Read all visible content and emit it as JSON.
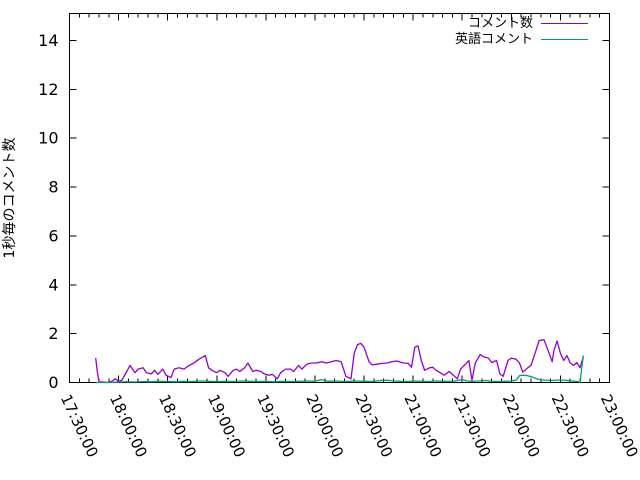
{
  "chart_data": {
    "type": "line",
    "title": "",
    "xlabel": "",
    "ylabel": "1秒毎のコメント数",
    "grid": false,
    "legend_position": "top-right-inside",
    "axis_color": "#000000",
    "text_color": "#000000",
    "background_color": "#ffffff",
    "ylim": [
      0,
      15.1
    ],
    "yticks": [
      0,
      2,
      4,
      6,
      8,
      10,
      12,
      14
    ],
    "x_unit": "minutes after 17:30:00",
    "xlim": [
      0,
      330
    ],
    "xtick_interval_minutes": 30,
    "x_minor_tick_minutes": 6,
    "xticks": [
      {
        "t": 0,
        "label": "17:30:00"
      },
      {
        "t": 30,
        "label": "18:00:00"
      },
      {
        "t": 60,
        "label": "18:30:00"
      },
      {
        "t": 90,
        "label": "19:00:00"
      },
      {
        "t": 120,
        "label": "19:30:00"
      },
      {
        "t": 150,
        "label": "20:00:00"
      },
      {
        "t": 180,
        "label": "20:30:00"
      },
      {
        "t": 210,
        "label": "21:00:00"
      },
      {
        "t": 240,
        "label": "21:30:00"
      },
      {
        "t": 270,
        "label": "22:00:00"
      },
      {
        "t": 300,
        "label": "22:30:00"
      },
      {
        "t": 330,
        "label": "23:00:00"
      }
    ],
    "series": [
      {
        "id": "comments",
        "name": "コメント数",
        "color": "#9400d3",
        "points": [
          [
            16,
            1.0
          ],
          [
            17,
            0.45
          ],
          [
            18,
            0.03
          ],
          [
            21,
            0.02
          ],
          [
            23,
            0
          ],
          [
            26,
            0.05
          ],
          [
            28,
            0.15
          ],
          [
            30,
            0.04
          ],
          [
            32,
            0.1
          ],
          [
            35,
            0.45
          ],
          [
            37,
            0.7
          ],
          [
            40,
            0.4
          ],
          [
            42,
            0.55
          ],
          [
            45,
            0.6
          ],
          [
            47,
            0.4
          ],
          [
            50,
            0.35
          ],
          [
            52,
            0.5
          ],
          [
            54,
            0.33
          ],
          [
            57,
            0.55
          ],
          [
            59,
            0.3
          ],
          [
            62,
            0.2
          ],
          [
            64,
            0.55
          ],
          [
            67,
            0.6
          ],
          [
            70,
            0.55
          ],
          [
            73,
            0.7
          ],
          [
            76,
            0.8
          ],
          [
            79,
            0.95
          ],
          [
            83,
            1.1
          ],
          [
            85,
            0.6
          ],
          [
            87,
            0.5
          ],
          [
            90,
            0.4
          ],
          [
            92,
            0.5
          ],
          [
            95,
            0.4
          ],
          [
            97,
            0.25
          ],
          [
            100,
            0.5
          ],
          [
            102,
            0.55
          ],
          [
            104,
            0.45
          ],
          [
            107,
            0.6
          ],
          [
            109,
            0.8
          ],
          [
            112,
            0.45
          ],
          [
            114,
            0.5
          ],
          [
            117,
            0.45
          ],
          [
            119,
            0.35
          ],
          [
            122,
            0.3
          ],
          [
            124,
            0.33
          ],
          [
            127,
            0.15
          ],
          [
            129,
            0.4
          ],
          [
            132,
            0.55
          ],
          [
            135,
            0.55
          ],
          [
            137,
            0.45
          ],
          [
            140,
            0.7
          ],
          [
            142,
            0.55
          ],
          [
            145,
            0.75
          ],
          [
            148,
            0.8
          ],
          [
            151,
            0.8
          ],
          [
            154,
            0.85
          ],
          [
            157,
            0.8
          ],
          [
            160,
            0.85
          ],
          [
            163,
            0.9
          ],
          [
            166,
            0.85
          ],
          [
            169,
            0.25
          ],
          [
            172,
            0.15
          ],
          [
            174,
            1.2
          ],
          [
            176,
            1.55
          ],
          [
            178,
            1.6
          ],
          [
            180,
            1.45
          ],
          [
            183,
            0.85
          ],
          [
            185,
            0.72
          ],
          [
            188,
            0.75
          ],
          [
            191,
            0.78
          ],
          [
            194,
            0.8
          ],
          [
            197,
            0.85
          ],
          [
            200,
            0.88
          ],
          [
            204,
            0.8
          ],
          [
            207,
            0.78
          ],
          [
            209,
            0.62
          ],
          [
            211,
            1.45
          ],
          [
            213,
            1.5
          ],
          [
            215,
            0.9
          ],
          [
            217,
            0.5
          ],
          [
            220,
            0.6
          ],
          [
            222,
            0.62
          ],
          [
            224,
            0.5
          ],
          [
            227,
            0.38
          ],
          [
            229,
            0.3
          ],
          [
            232,
            0.45
          ],
          [
            234,
            0.33
          ],
          [
            237,
            0.15
          ],
          [
            239,
            0.55
          ],
          [
            242,
            0.75
          ],
          [
            244,
            0.9
          ],
          [
            246,
            0.1
          ],
          [
            248,
            0.8
          ],
          [
            251,
            1.15
          ],
          [
            253,
            1.05
          ],
          [
            256,
            1.0
          ],
          [
            258,
            0.82
          ],
          [
            261,
            0.9
          ],
          [
            263,
            0.35
          ],
          [
            265,
            0.25
          ],
          [
            268,
            0.9
          ],
          [
            270,
            1.0
          ],
          [
            273,
            0.95
          ],
          [
            275,
            0.8
          ],
          [
            277,
            0.42
          ],
          [
            280,
            0.6
          ],
          [
            282,
            0.7
          ],
          [
            285,
            1.3
          ],
          [
            287,
            1.72
          ],
          [
            290,
            1.75
          ],
          [
            292,
            1.4
          ],
          [
            295,
            0.85
          ],
          [
            296,
            1.3
          ],
          [
            298,
            1.7
          ],
          [
            300,
            1.2
          ],
          [
            302,
            0.9
          ],
          [
            304,
            1.1
          ],
          [
            306,
            0.8
          ],
          [
            308,
            0.7
          ],
          [
            310,
            0.82
          ],
          [
            312,
            0.6
          ],
          [
            314,
            1.05
          ]
        ]
      },
      {
        "id": "english-comments",
        "name": "英語コメント",
        "color": "#009e73",
        "points": [
          [
            16,
            0
          ],
          [
            20,
            0
          ],
          [
            25,
            0
          ],
          [
            30,
            0.02
          ],
          [
            35,
            0.03
          ],
          [
            40,
            0.02
          ],
          [
            45,
            0.04
          ],
          [
            50,
            0.03
          ],
          [
            55,
            0.05
          ],
          [
            60,
            0.04
          ],
          [
            65,
            0.03
          ],
          [
            70,
            0.05
          ],
          [
            75,
            0.04
          ],
          [
            80,
            0.06
          ],
          [
            85,
            0.05
          ],
          [
            90,
            0.04
          ],
          [
            95,
            0.05
          ],
          [
            100,
            0.04
          ],
          [
            105,
            0.06
          ],
          [
            110,
            0.05
          ],
          [
            115,
            0.04
          ],
          [
            120,
            0.05
          ],
          [
            125,
            0.03
          ],
          [
            130,
            0.05
          ],
          [
            135,
            0.04
          ],
          [
            140,
            0.05
          ],
          [
            145,
            0.06
          ],
          [
            150,
            0.05
          ],
          [
            154,
            0.12
          ],
          [
            158,
            0.05
          ],
          [
            163,
            0.06
          ],
          [
            168,
            0.04
          ],
          [
            172,
            0.05
          ],
          [
            176,
            0.06
          ],
          [
            180,
            0.05
          ],
          [
            185,
            0.04
          ],
          [
            190,
            0.08
          ],
          [
            194,
            0.1
          ],
          [
            198,
            0.06
          ],
          [
            202,
            0.05
          ],
          [
            207,
            0.04
          ],
          [
            211,
            0.06
          ],
          [
            215,
            0.05
          ],
          [
            220,
            0.04
          ],
          [
            224,
            0.06
          ],
          [
            229,
            0.05
          ],
          [
            234,
            0.04
          ],
          [
            237,
            0.08
          ],
          [
            240,
            0.12
          ],
          [
            243,
            0.06
          ],
          [
            246,
            0.05
          ],
          [
            250,
            0.06
          ],
          [
            254,
            0.08
          ],
          [
            258,
            0.05
          ],
          [
            262,
            0.04
          ],
          [
            266,
            0.05
          ],
          [
            270,
            0.06
          ],
          [
            273,
            0.1
          ],
          [
            275,
            0.28
          ],
          [
            277,
            0.3
          ],
          [
            280,
            0.28
          ],
          [
            283,
            0.22
          ],
          [
            286,
            0.14
          ],
          [
            290,
            0.1
          ],
          [
            294,
            0.08
          ],
          [
            298,
            0.1
          ],
          [
            302,
            0.1
          ],
          [
            306,
            0.07
          ],
          [
            309,
            0.05
          ],
          [
            311,
            0.04
          ],
          [
            312,
            0.0
          ],
          [
            314,
            1.1
          ]
        ]
      }
    ]
  }
}
